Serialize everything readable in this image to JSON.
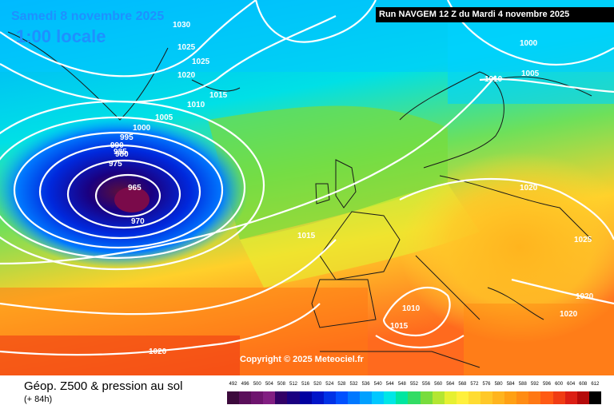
{
  "header": {
    "date": "Samedi 8 novembre 2025",
    "time": "1:00 locale",
    "run": "Run NAVGEM 12 Z du Mardi 4 novembre 2025"
  },
  "footer": {
    "copyright": "Copyright © 2025 Meteociel.fr",
    "title": "Géop. Z500 & pression au sol",
    "subtitle": "(+ 84h)"
  },
  "legend": {
    "values": [
      "492",
      "496",
      "500",
      "504",
      "508",
      "512",
      "516",
      "520",
      "524",
      "528",
      "532",
      "536",
      "540",
      "544",
      "548",
      "552",
      "556",
      "560",
      "564",
      "568",
      "572",
      "576",
      "580",
      "584",
      "588",
      "592",
      "596",
      "600",
      "604",
      "608",
      "612"
    ],
    "colors": [
      "#3c0a3c",
      "#5a0f5a",
      "#6e146e",
      "#821e82",
      "#330066",
      "#1a0080",
      "#0000a0",
      "#0014c8",
      "#0032e6",
      "#0050ff",
      "#0078ff",
      "#00a0ff",
      "#00c8ff",
      "#00e6e6",
      "#00e6a0",
      "#32dc64",
      "#78dc3c",
      "#b4e632",
      "#e6f032",
      "#fff03c",
      "#ffdc32",
      "#ffc828",
      "#ffb41e",
      "#ffa014",
      "#ff8c14",
      "#ff7814",
      "#ff5a14",
      "#f03c14",
      "#dc1e14",
      "#b40a0a",
      "#000000"
    ]
  },
  "isobars": [
    {
      "text": "1030"
    },
    {
      "text": "1025"
    },
    {
      "text": "1025"
    },
    {
      "text": "1020"
    },
    {
      "text": "1015"
    },
    {
      "text": "1010"
    },
    {
      "text": "1005"
    },
    {
      "text": "1000"
    },
    {
      "text": "995"
    },
    {
      "text": "990"
    },
    {
      "text": "985"
    },
    {
      "text": "980"
    },
    {
      "text": "975"
    },
    {
      "text": "965"
    },
    {
      "text": "970"
    },
    {
      "text": "1015"
    },
    {
      "text": "1020"
    },
    {
      "text": "1000"
    },
    {
      "text": "1005"
    },
    {
      "text": "1010"
    },
    {
      "text": "1020"
    },
    {
      "text": "1025"
    },
    {
      "text": "1020"
    },
    {
      "text": "1020"
    },
    {
      "text": "1010"
    },
    {
      "text": "1015"
    }
  ]
}
